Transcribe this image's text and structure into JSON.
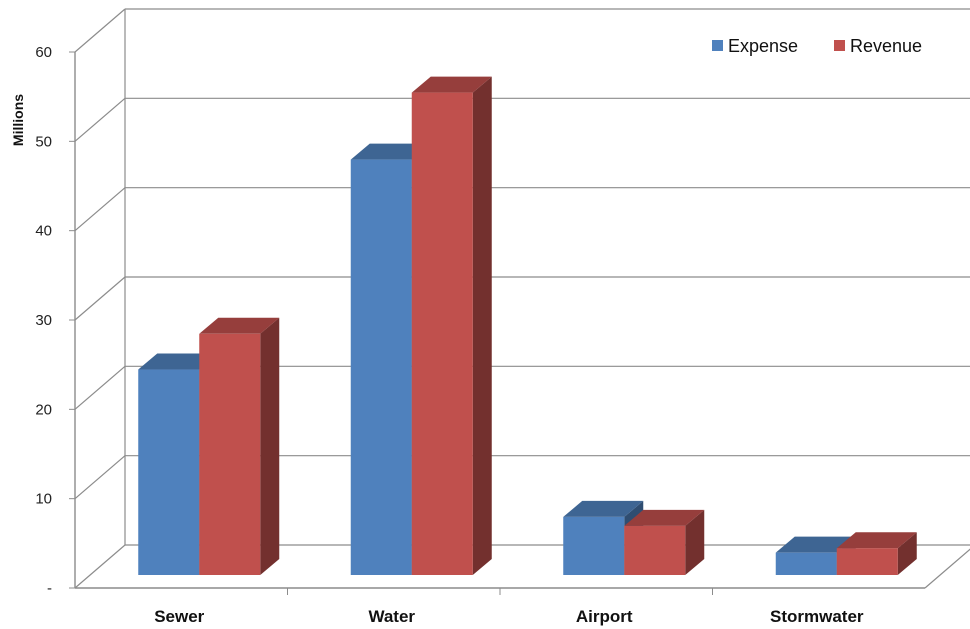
{
  "chart_data": {
    "type": "bar",
    "title": "",
    "xlabel": "",
    "ylabel": "Millions",
    "ylim": [
      0,
      60
    ],
    "yticks": [
      {
        "value": 0,
        "label": "-"
      },
      {
        "value": 10,
        "label": "10"
      },
      {
        "value": 20,
        "label": "20"
      },
      {
        "value": 30,
        "label": "30"
      },
      {
        "value": 40,
        "label": "40"
      },
      {
        "value": 50,
        "label": "50"
      },
      {
        "value": 60,
        "label": "60"
      }
    ],
    "categories": [
      "Sewer",
      "Water",
      "Airport",
      "Stormwater"
    ],
    "series": [
      {
        "name": "Expense",
        "color": "#4F81BD",
        "values": [
          23,
          46.5,
          6.5,
          2.5
        ]
      },
      {
        "name": "Revenue",
        "color": "#C0504D",
        "values": [
          27,
          54,
          5.5,
          3
        ]
      }
    ],
    "legend": "top-right",
    "grid": true,
    "style": "3d-clustered-column"
  }
}
